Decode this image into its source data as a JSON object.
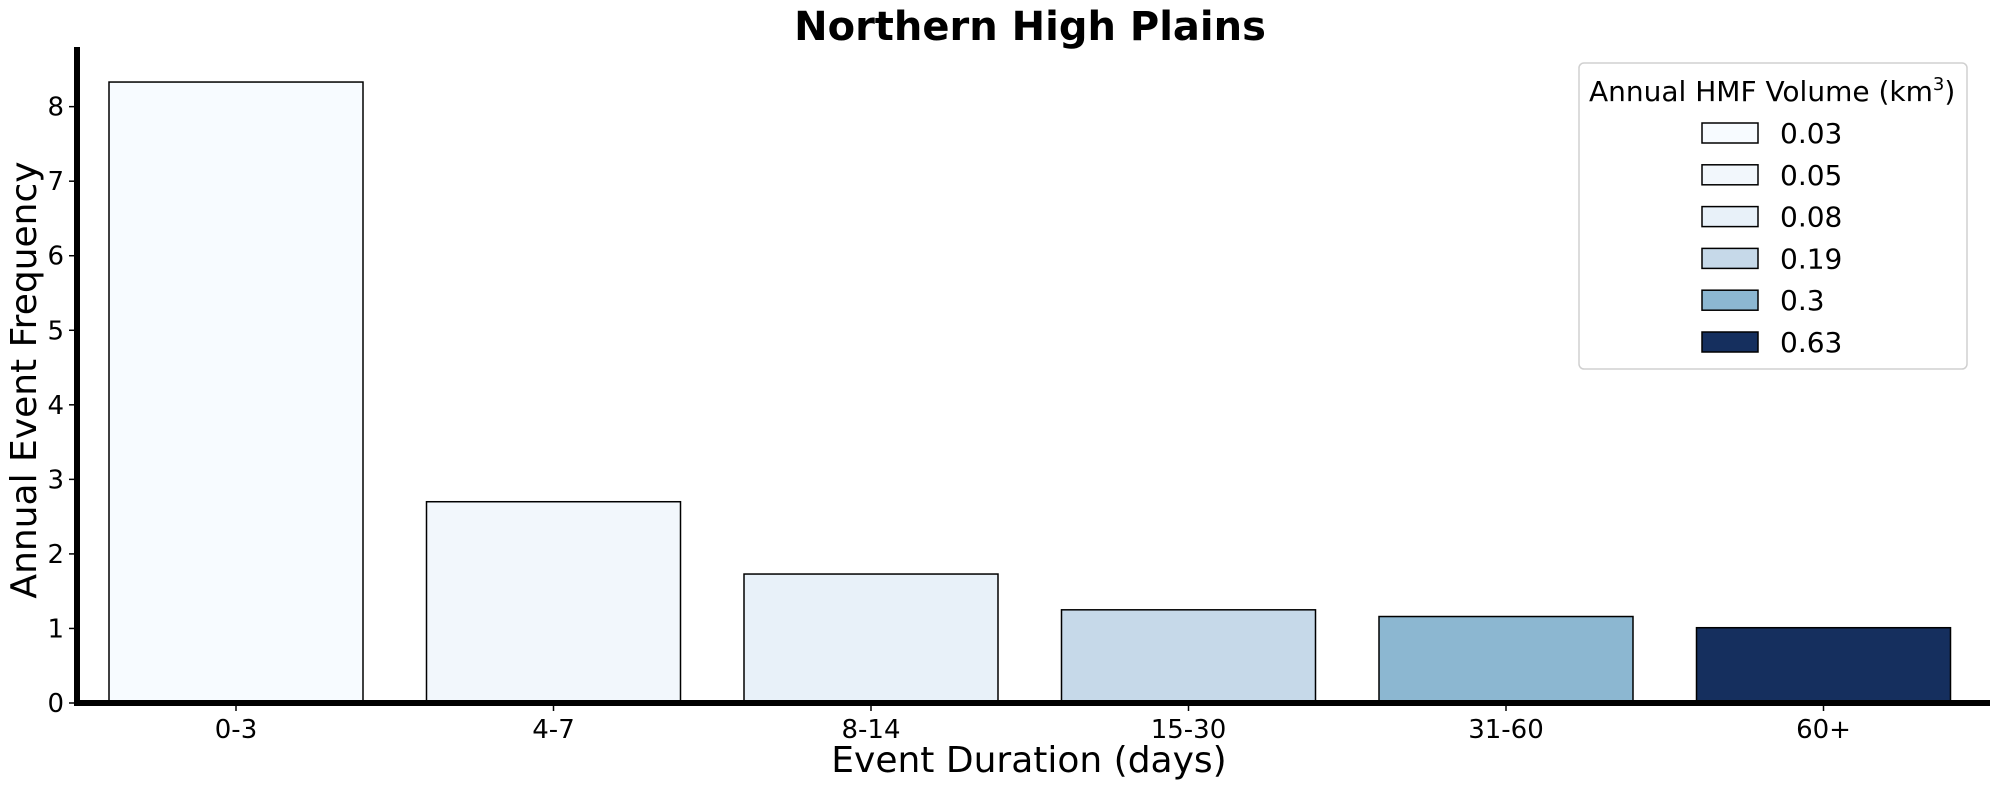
{
  "chart_data": {
    "type": "bar",
    "title": "Northern High Plains",
    "xlabel": "Event Duration (days)",
    "ylabel": "Annual Event Frequency",
    "categories": [
      "0-3",
      "4-7",
      "8-14",
      "15-30",
      "31-60",
      "60+"
    ],
    "values": [
      8.33,
      2.7,
      1.73,
      1.25,
      1.16,
      1.01
    ],
    "ylim": [
      0,
      8.8
    ],
    "yticks": [
      "0",
      "1",
      "2",
      "3",
      "4",
      "5",
      "6",
      "7",
      "8"
    ],
    "grid": false,
    "legend": {
      "title_main": "Annual HMF Volume (km",
      "title_sup": "3",
      "title_end": ")",
      "placement": "top-right",
      "entries": [
        "0.03",
        "0.05",
        "0.08",
        "0.19",
        "0.3",
        "0.63"
      ]
    },
    "colors": [
      "#f7fbff",
      "#f2f7fc",
      "#e8f1f9",
      "#c6d9e9",
      "#8cb7d1",
      "#152f5e"
    ]
  }
}
